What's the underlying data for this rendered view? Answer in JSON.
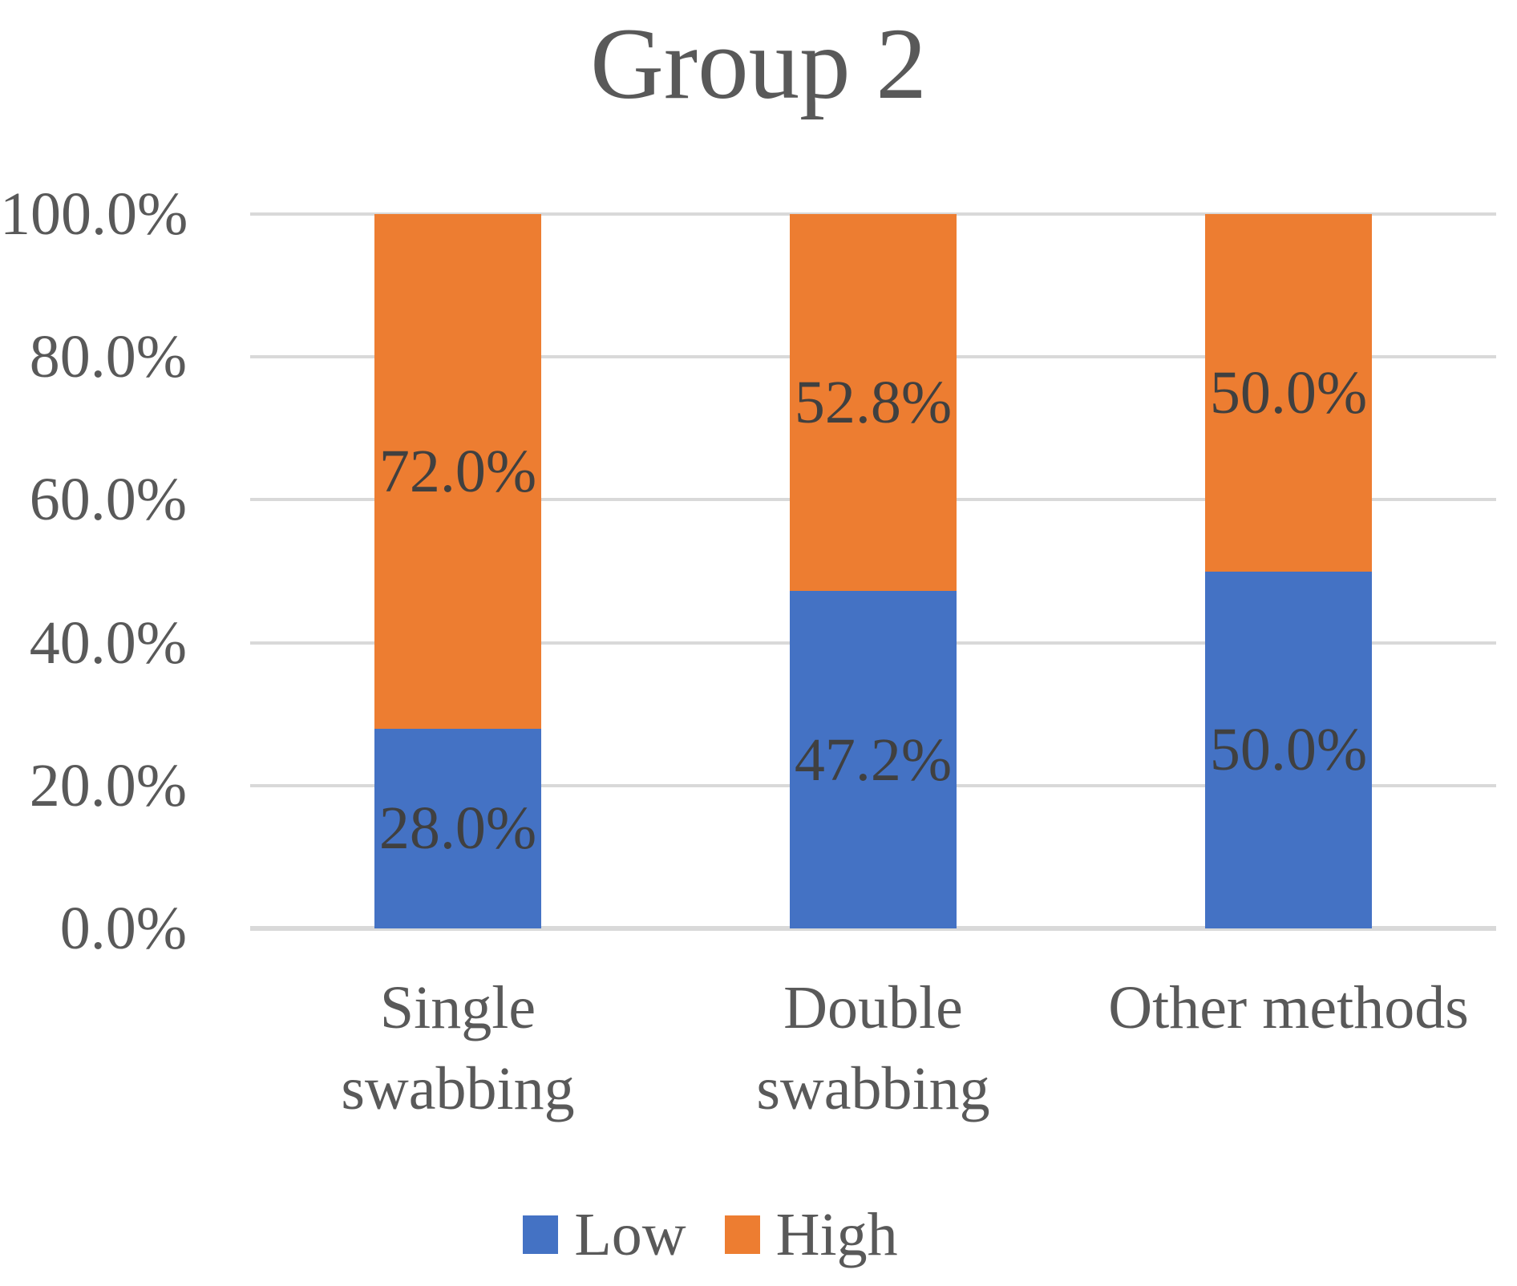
{
  "theme": {
    "background": "#FFFFFF",
    "title_color": "#595959",
    "axis_text_color": "#595959",
    "data_label_color": "#404040",
    "gridline_color": "#D9D9D9",
    "axis_line_color": "#D9D9D9",
    "low_color": "#4472C4",
    "high_color": "#ED7D31"
  },
  "legend": {
    "items": [
      {
        "label": "Low",
        "color": "#4472C4"
      },
      {
        "label": "High",
        "color": "#ED7D31"
      }
    ]
  },
  "chart_data": {
    "type": "bar",
    "subtype": "stacked-100-percent-column",
    "title": "Group 2",
    "categories": [
      "Single swabbing",
      "Double swabbing",
      "Other methods"
    ],
    "category_tick_lines": [
      [
        "Single",
        "swabbing"
      ],
      [
        "Double",
        "swabbing"
      ],
      [
        "Other methods"
      ]
    ],
    "series": [
      {
        "name": "Low",
        "color": "#4472C4",
        "values": [
          28.0,
          47.2,
          50.0
        ],
        "data_labels": [
          "28.0%",
          "47.2%",
          "50.0%"
        ]
      },
      {
        "name": "High",
        "color": "#ED7D31",
        "values": [
          72.0,
          52.8,
          50.0
        ],
        "data_labels": [
          "72.0%",
          "52.8%",
          "50.0%"
        ]
      }
    ],
    "y_axis": {
      "min": 0,
      "max": 100,
      "tick_interval": 20,
      "tick_labels": [
        "0.0%",
        "20.0%",
        "40.0%",
        "60.0%",
        "80.0%",
        "100.0%"
      ]
    },
    "x_axis": {
      "label": ""
    },
    "grid": true,
    "legend_position": "bottom"
  }
}
